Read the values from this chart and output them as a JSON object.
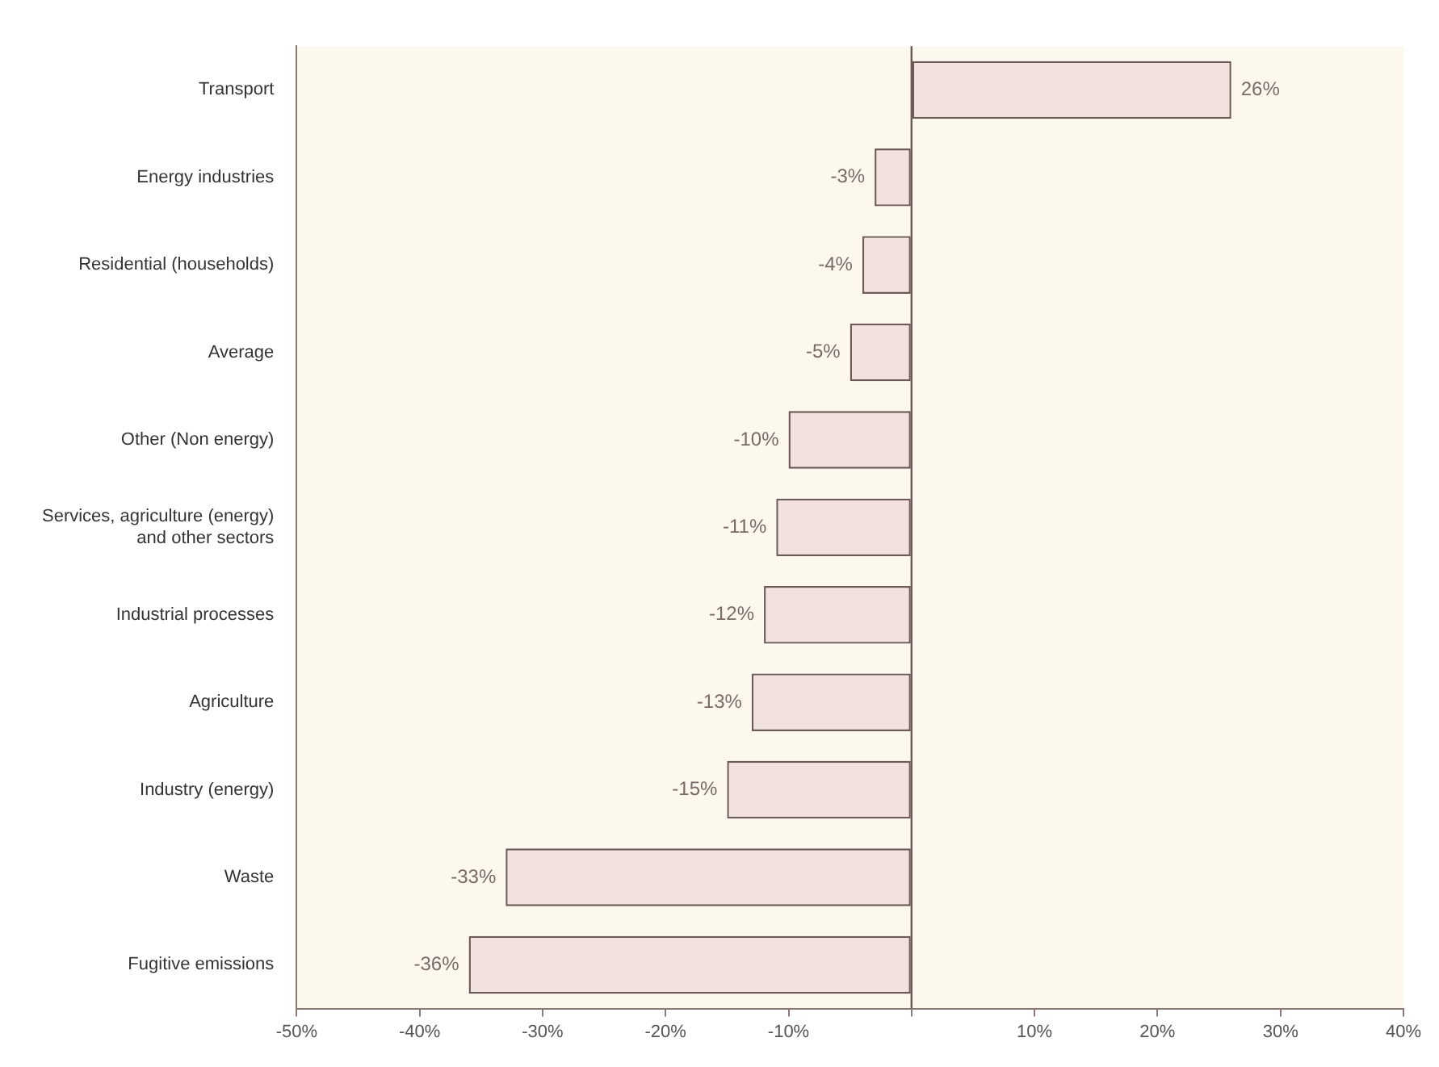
{
  "chart_data": {
    "type": "bar",
    "orientation": "horizontal",
    "categories": [
      "Transport",
      "Energy industries",
      "Residential (households)",
      "Average",
      "Other (Non energy)",
      "Services, agriculture (energy) and other sectors",
      "Industrial processes",
      "Agriculture",
      "Industry (energy)",
      "Waste",
      "Fugitive emissions"
    ],
    "values": [
      26,
      -3,
      -4,
      -5,
      -10,
      -11,
      -12,
      -13,
      -15,
      -33,
      -36
    ],
    "value_labels": [
      "26%",
      "-3%",
      "-4%",
      "-5%",
      "-10%",
      "-11%",
      "-12%",
      "-13%",
      "-15%",
      "-33%",
      "-36%"
    ],
    "color": "#f2e2de",
    "xlim": [
      -50,
      40
    ],
    "xticks": [
      {
        "value": -50,
        "label": "-50%"
      },
      {
        "value": -40,
        "label": "-40%"
      },
      {
        "value": -30,
        "label": "-30%"
      },
      {
        "value": -20,
        "label": "-20%"
      },
      {
        "value": -10,
        "label": "-10%"
      },
      {
        "value": 0,
        "label": null
      },
      {
        "value": 10,
        "label": "10%"
      },
      {
        "value": 20,
        "label": "20%"
      },
      {
        "value": 30,
        "label": "30%"
      },
      {
        "value": 40,
        "label": "40%"
      }
    ],
    "ref_lines": [
      {
        "axis": "x",
        "value": 0,
        "color": "#6b5a55"
      }
    ],
    "grid": false,
    "legend": false
  }
}
